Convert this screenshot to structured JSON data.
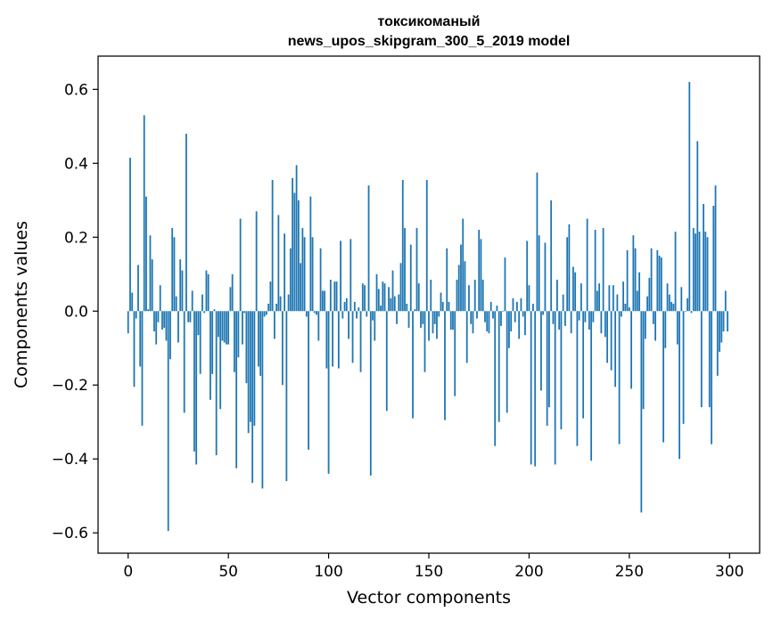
{
  "chart_data": {
    "type": "bar",
    "title_lines": [
      "токсикоманый",
      "news_upos_skipgram_300_5_2019 model"
    ],
    "xlabel": "Vector components",
    "ylabel": "Components values",
    "xlim": [
      -15,
      315
    ],
    "ylim": [
      -0.655,
      0.69
    ],
    "x_ticks": [
      0,
      50,
      100,
      150,
      200,
      250,
      300
    ],
    "x_tick_labels": [
      "0",
      "50",
      "100",
      "150",
      "200",
      "250",
      "300"
    ],
    "y_ticks": [
      -0.6,
      -0.4,
      -0.2,
      0.0,
      0.2,
      0.4,
      0.6
    ],
    "y_tick_labels": [
      "−0.6",
      "−0.4",
      "−0.2",
      "0.0",
      "0.2",
      "0.4",
      "0.6"
    ],
    "bar_color": "#1f77b4",
    "x": [
      0,
      1,
      2,
      3,
      4,
      5,
      6,
      7,
      8,
      9,
      10,
      11,
      12,
      13,
      14,
      15,
      16,
      17,
      18,
      19,
      20,
      21,
      22,
      23,
      24,
      25,
      26,
      27,
      28,
      29,
      30,
      31,
      32,
      33,
      34,
      35,
      36,
      37,
      38,
      39,
      40,
      41,
      42,
      43,
      44,
      45,
      46,
      47,
      48,
      49,
      50,
      51,
      52,
      53,
      54,
      55,
      56,
      57,
      58,
      59,
      60,
      61,
      62,
      63,
      64,
      65,
      66,
      67,
      68,
      69,
      70,
      71,
      72,
      73,
      74,
      75,
      76,
      77,
      78,
      79,
      80,
      81,
      82,
      83,
      84,
      85,
      86,
      87,
      88,
      89,
      90,
      91,
      92,
      93,
      94,
      95,
      96,
      97,
      98,
      99,
      100,
      101,
      102,
      103,
      104,
      105,
      106,
      107,
      108,
      109,
      110,
      111,
      112,
      113,
      114,
      115,
      116,
      117,
      118,
      119,
      120,
      121,
      122,
      123,
      124,
      125,
      126,
      127,
      128,
      129,
      130,
      131,
      132,
      133,
      134,
      135,
      136,
      137,
      138,
      139,
      140,
      141,
      142,
      143,
      144,
      145,
      146,
      147,
      148,
      149,
      150,
      151,
      152,
      153,
      154,
      155,
      156,
      157,
      158,
      159,
      160,
      161,
      162,
      163,
      164,
      165,
      166,
      167,
      168,
      169,
      170,
      171,
      172,
      173,
      174,
      175,
      176,
      177,
      178,
      179,
      180,
      181,
      182,
      183,
      184,
      185,
      186,
      187,
      188,
      189,
      190,
      191,
      192,
      193,
      194,
      195,
      196,
      197,
      198,
      199,
      200,
      201,
      202,
      203,
      204,
      205,
      206,
      207,
      208,
      209,
      210,
      211,
      212,
      213,
      214,
      215,
      216,
      217,
      218,
      219,
      220,
      221,
      222,
      223,
      224,
      225,
      226,
      227,
      228,
      229,
      230,
      231,
      232,
      233,
      234,
      235,
      236,
      237,
      238,
      239,
      240,
      241,
      242,
      243,
      244,
      245,
      246,
      247,
      248,
      249,
      250,
      251,
      252,
      253,
      254,
      255,
      256,
      257,
      258,
      259,
      260,
      261,
      262,
      263,
      264,
      265,
      266,
      267,
      268,
      269,
      270,
      271,
      272,
      273,
      274,
      275,
      276,
      277,
      278,
      279,
      280,
      281,
      282,
      283,
      284,
      285,
      286,
      287,
      288,
      289,
      290,
      291,
      292,
      293,
      294,
      295,
      296,
      297,
      298,
      299
    ],
    "values": [
      -0.06,
      0.415,
      0.05,
      -0.205,
      -0.02,
      0.125,
      -0.15,
      -0.31,
      0.53,
      0.31,
      0.005,
      0.205,
      0.14,
      -0.055,
      -0.09,
      -0.03,
      0.07,
      -0.05,
      -0.045,
      -0.08,
      -0.595,
      -0.13,
      0.225,
      0.2,
      0.04,
      -0.085,
      0.14,
      0.11,
      -0.275,
      0.48,
      -0.03,
      -0.03,
      0.055,
      -0.38,
      -0.415,
      -0.065,
      -0.17,
      0.045,
      -0.005,
      0.11,
      0.1,
      -0.24,
      -0.17,
      0.005,
      -0.39,
      -0.07,
      -0.265,
      -0.08,
      -0.085,
      -0.09,
      -0.09,
      0.065,
      0.1,
      -0.165,
      -0.425,
      -0.125,
      0.25,
      -0.09,
      -0.005,
      -0.195,
      -0.33,
      -0.3,
      -0.465,
      -0.31,
      0.27,
      -0.15,
      -0.175,
      -0.48,
      -0.015,
      -0.01,
      0.02,
      0.08,
      0.355,
      -0.075,
      0.02,
      0.26,
      0.04,
      -0.2,
      0.21,
      -0.46,
      0.045,
      0.17,
      0.36,
      0.32,
      0.395,
      0.3,
      0.13,
      0.225,
      0.2,
      -0.015,
      -0.375,
      0.31,
      0.2,
      -0.005,
      -0.01,
      -0.08,
      0.17,
      0.055,
      0.055,
      -0.155,
      -0.44,
      0.085,
      -0.15,
      0.08,
      0.08,
      -0.155,
      0.19,
      -0.02,
      0.025,
      0.035,
      -0.075,
      0.195,
      -0.14,
      0.025,
      -0.02,
      0.01,
      -0.165,
      0.075,
      0.07,
      -0.015,
      0.34,
      -0.445,
      -0.025,
      -0.08,
      0.1,
      0.06,
      0.015,
      0.08,
      0.075,
      -0.27,
      0.065,
      0.035,
      0.11,
      0.04,
      -0.035,
      0.045,
      0.13,
      0.355,
      0.225,
      0.02,
      -0.045,
      0.18,
      -0.29,
      0.005,
      0.225,
      0.075,
      -0.045,
      -0.035,
      -0.165,
      0.355,
      -0.08,
      0.085,
      -0.06,
      -0.035,
      -0.075,
      -0.015,
      0.05,
      0.025,
      -0.295,
      0.17,
      0.025,
      -0.05,
      -0.05,
      -0.23,
      0.085,
      0.125,
      0.18,
      0.25,
      0.135,
      -0.14,
      0.07,
      -0.035,
      -0.06,
      0.085,
      -0.02,
      0.22,
      0.195,
      0.085,
      -0.03,
      -0.055,
      -0.06,
      0.025,
      -0.02,
      -0.365,
      0.015,
      -0.3,
      -0.04,
      0.0,
      0.145,
      -0.275,
      -0.1,
      -0.055,
      0.035,
      -0.03,
      0.025,
      -0.075,
      0.035,
      -0.015,
      -0.065,
      0.19,
      0.07,
      -0.415,
      0.02,
      -0.42,
      0.375,
      0.205,
      -0.215,
      -0.01,
      0.185,
      -0.31,
      -0.26,
      0.3,
      -0.035,
      -0.415,
      0.085,
      -0.05,
      -0.32,
      0.045,
      -0.04,
      0.2,
      0.235,
      -0.06,
      0.12,
      0.105,
      -0.365,
      -0.025,
      0.075,
      -0.29,
      -0.03,
      0.25,
      -0.05,
      -0.405,
      -0.03,
      0.22,
      0.055,
      0.075,
      -0.06,
      0.225,
      -0.07,
      -0.14,
      0.07,
      -0.16,
      0.07,
      -0.205,
      0.045,
      -0.36,
      -0.015,
      0.08,
      0.02,
      0.165,
      0.01,
      -0.21,
      0.205,
      0.17,
      0.055,
      0.105,
      -0.545,
      -0.265,
      -0.075,
      0.04,
      0.09,
      0.17,
      -0.035,
      -0.08,
      0.165,
      0.15,
      0.145,
      -0.355,
      -0.1,
      0.075,
      0.045,
      0.025,
      0.02,
      0.215,
      -0.09,
      -0.4,
      0.065,
      -0.305,
      0.0,
      0.035,
      0.62,
      -0.005,
      0.225,
      0.21,
      0.46,
      0.215,
      -0.26,
      0.29,
      0.215,
      0.2,
      -0.26,
      -0.36,
      0.285,
      0.34,
      -0.175,
      -0.11,
      -0.085,
      -0.055,
      0.055,
      -0.055
    ]
  }
}
